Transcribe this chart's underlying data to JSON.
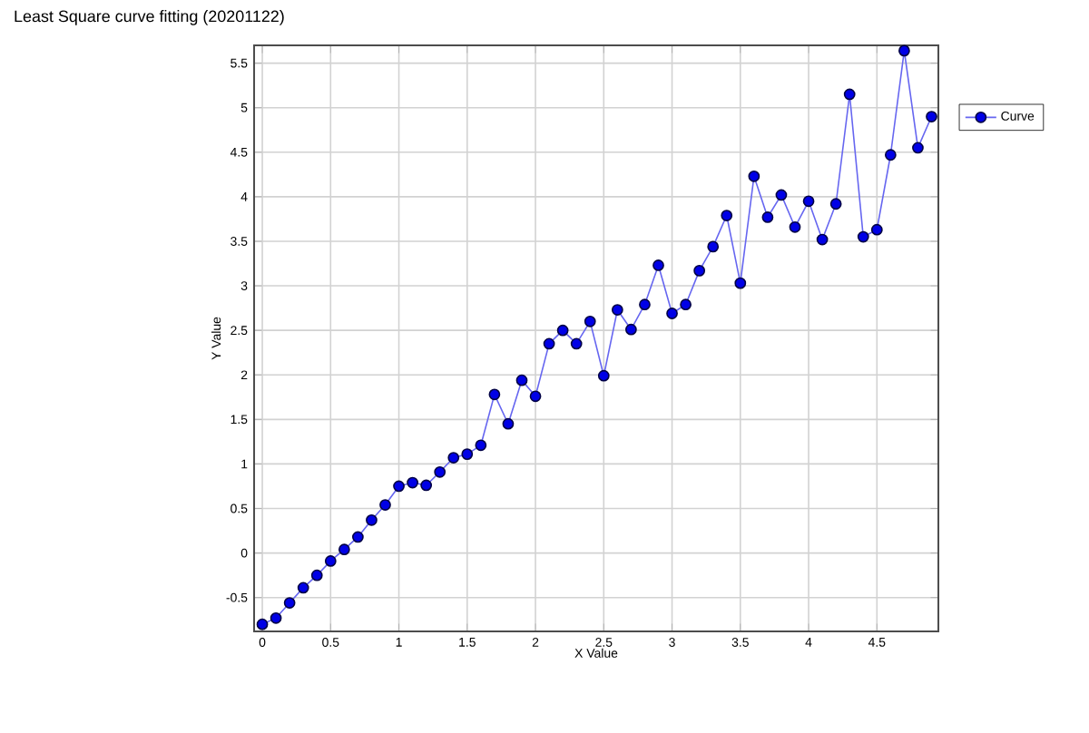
{
  "chart_data": {
    "type": "line",
    "title": "Least Square curve fitting (20201122)",
    "xlabel": "X Value",
    "ylabel": "Y Value",
    "x": [
      0,
      0.1,
      0.2,
      0.3,
      0.4,
      0.5,
      0.6,
      0.7,
      0.8,
      0.9,
      1.0,
      1.1,
      1.2,
      1.3,
      1.4,
      1.5,
      1.6,
      1.7,
      1.8,
      1.9,
      2.0,
      2.1,
      2.2,
      2.3,
      2.4,
      2.5,
      2.6,
      2.7,
      2.8,
      2.9,
      3.0,
      3.1,
      3.2,
      3.3,
      3.4,
      3.5,
      3.6,
      3.7,
      3.8,
      3.9,
      4.0,
      4.1,
      4.2,
      4.3,
      4.4,
      4.5,
      4.6,
      4.7,
      4.8,
      4.9
    ],
    "series": [
      {
        "name": "Curve",
        "color": "#0000e6",
        "values": [
          -0.8,
          -0.73,
          -0.56,
          -0.39,
          -0.25,
          -0.09,
          0.04,
          0.18,
          0.37,
          0.54,
          0.75,
          0.79,
          0.76,
          0.91,
          1.07,
          1.11,
          1.21,
          1.78,
          1.45,
          1.94,
          1.76,
          2.35,
          2.5,
          2.35,
          2.6,
          1.99,
          2.73,
          2.51,
          2.79,
          3.23,
          2.69,
          2.79,
          3.17,
          3.44,
          3.79,
          3.03,
          4.23,
          3.77,
          4.02,
          3.66,
          3.95,
          3.52,
          3.92,
          5.15,
          3.55,
          3.63,
          4.47,
          5.64,
          4.55,
          4.9
        ]
      }
    ],
    "xlim": [
      -0.06,
      4.95
    ],
    "ylim": [
      -0.88,
      5.7
    ],
    "xticks": [
      0,
      0.5,
      1,
      1.5,
      2,
      2.5,
      3,
      3.5,
      4,
      4.5
    ],
    "yticks": [
      -0.5,
      0,
      0.5,
      1,
      1.5,
      2,
      2.5,
      3,
      3.5,
      4,
      4.5,
      5,
      5.5
    ],
    "grid": true,
    "legend": "top right",
    "marker": "circle",
    "line_style": "solid"
  }
}
